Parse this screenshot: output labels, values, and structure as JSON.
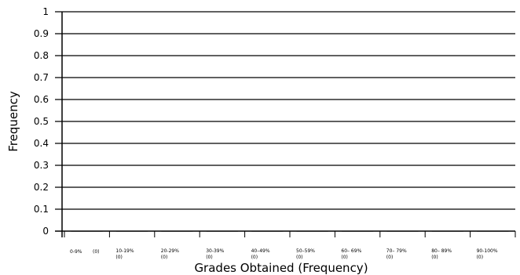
{
  "chart_data": {
    "type": "bar",
    "title": "",
    "xlabel": "Grades Obtained (Frequency)",
    "ylabel": "Frequency",
    "ylim": [
      0,
      1
    ],
    "yticks": [
      "0",
      "0.1",
      "0.2",
      "0.3",
      "0.4",
      "0.5",
      "0.6",
      "0.7",
      "0.8",
      "0.9",
      "1"
    ],
    "grid": true,
    "legend": "none",
    "categories": [
      {
        "range": "0-9%",
        "count": "(0)"
      },
      {
        "range": "10-19%",
        "count": "(0)"
      },
      {
        "range": "20-29%",
        "count": "(0)"
      },
      {
        "range": "30-39%",
        "count": "(0)"
      },
      {
        "range": "40–49%",
        "count": "(0)"
      },
      {
        "range": "50–59%",
        "count": "(0)"
      },
      {
        "range": "60– 69%",
        "count": "(0)"
      },
      {
        "range": "70– 79%",
        "count": "(0)"
      },
      {
        "range": "80– 89%",
        "count": "(0)"
      },
      {
        "range": "90-100%",
        "count": "(0)"
      }
    ],
    "values": [
      0,
      0,
      0,
      0,
      0,
      0,
      0,
      0,
      0,
      0
    ],
    "colors": {
      "grid": "#000000",
      "bar": "#000000"
    }
  }
}
